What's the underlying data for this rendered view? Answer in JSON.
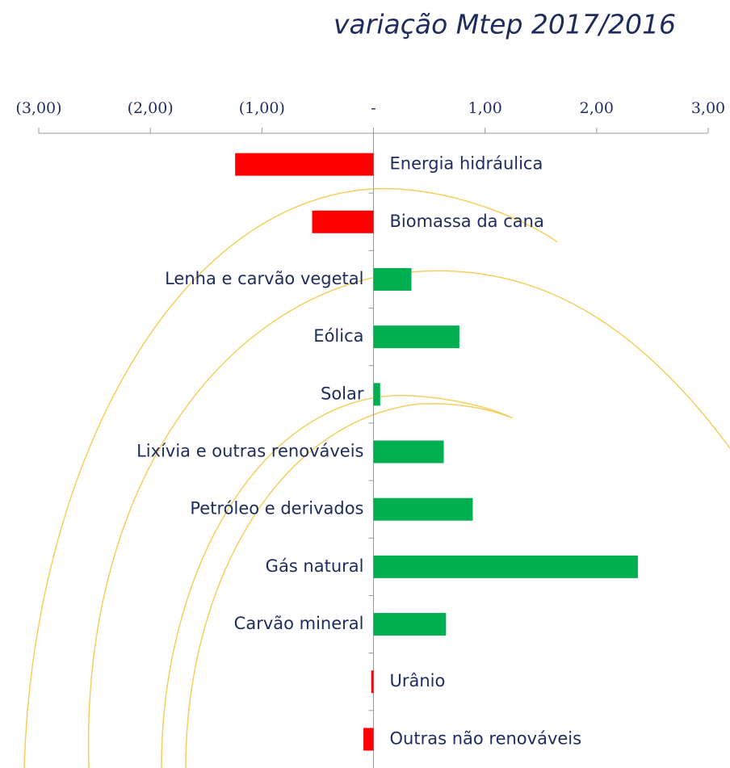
{
  "chart_data": {
    "type": "bar",
    "orientation": "horizontal",
    "title": "variação Mtep 2017/2016",
    "categories": [
      "Energia hidráulica",
      "Biomassa da cana",
      "Lenha e carvão vegetal",
      "Eólica",
      "Solar",
      "Lixívia e outras renováveis",
      "Petróleo e derivados",
      "Gás natural",
      "Carvão mineral",
      "Urânio",
      "Outras não renováveis"
    ],
    "values": [
      -1.24,
      -0.55,
      0.34,
      0.77,
      0.06,
      0.63,
      0.89,
      2.37,
      0.65,
      -0.02,
      -0.09
    ],
    "positive_color": "#00b050",
    "negative_color": "#ff0000",
    "xlim": [
      -3,
      3
    ],
    "xticks": [
      {
        "value": -3,
        "label": "(3,00)"
      },
      {
        "value": -2,
        "label": "(2,00)"
      },
      {
        "value": -1,
        "label": "(1,00)"
      },
      {
        "value": 0,
        "label": "-"
      },
      {
        "value": 1,
        "label": "1,00"
      },
      {
        "value": 2,
        "label": "2,00"
      },
      {
        "value": 3,
        "label": "3,00"
      }
    ]
  }
}
